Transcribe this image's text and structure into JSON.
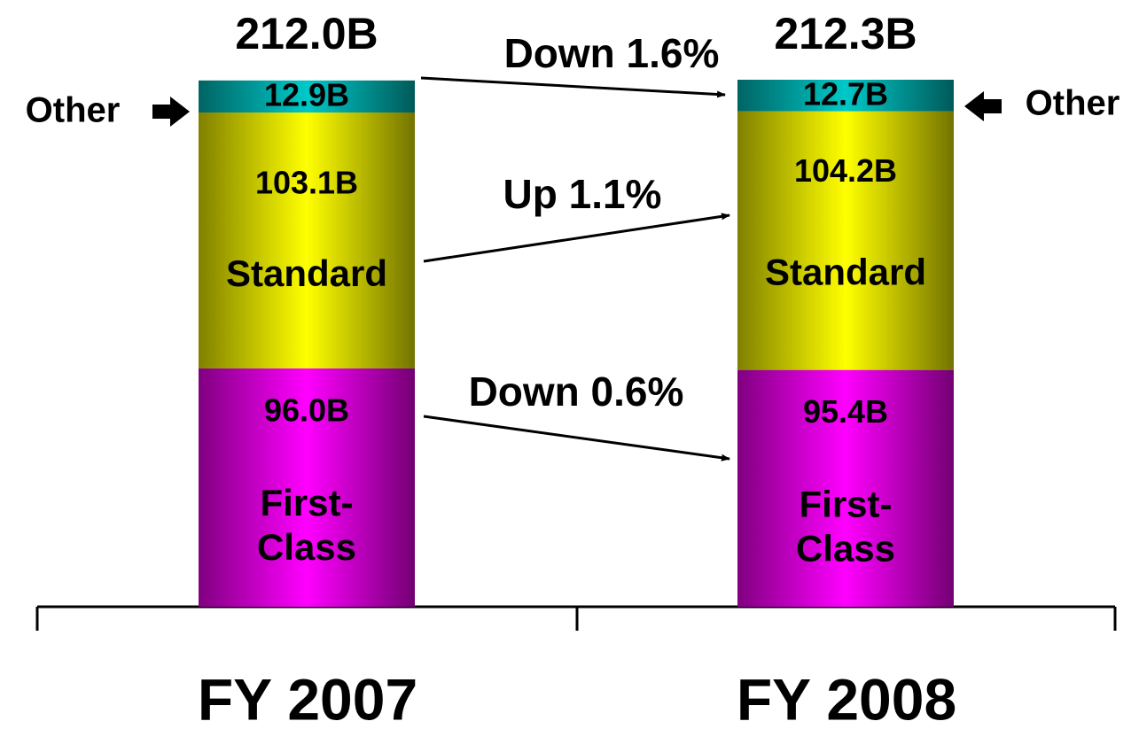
{
  "chart_data": {
    "type": "stacked-bar",
    "categories": [
      "FY 2007",
      "FY 2008"
    ],
    "series": [
      {
        "name": "First-Class",
        "color": "#ff00ff",
        "values": [
          96.0,
          95.4
        ],
        "value_labels": [
          "96.0B",
          "95.4B"
        ]
      },
      {
        "name": "Standard",
        "color": "#ffff00",
        "values": [
          103.1,
          104.2
        ],
        "value_labels": [
          "103.1B",
          "104.2B"
        ]
      },
      {
        "name": "Other",
        "color": "#00c8c8",
        "values": [
          12.9,
          12.7
        ],
        "value_labels": [
          "12.9B",
          "12.7B"
        ]
      }
    ],
    "totals": {
      "values": [
        212.0,
        212.3
      ],
      "value_labels": [
        "212.0B",
        "212.3B"
      ]
    },
    "annotations": [
      "Down 1.6%",
      "Up 1.1%",
      "Down 0.6%"
    ]
  }
}
